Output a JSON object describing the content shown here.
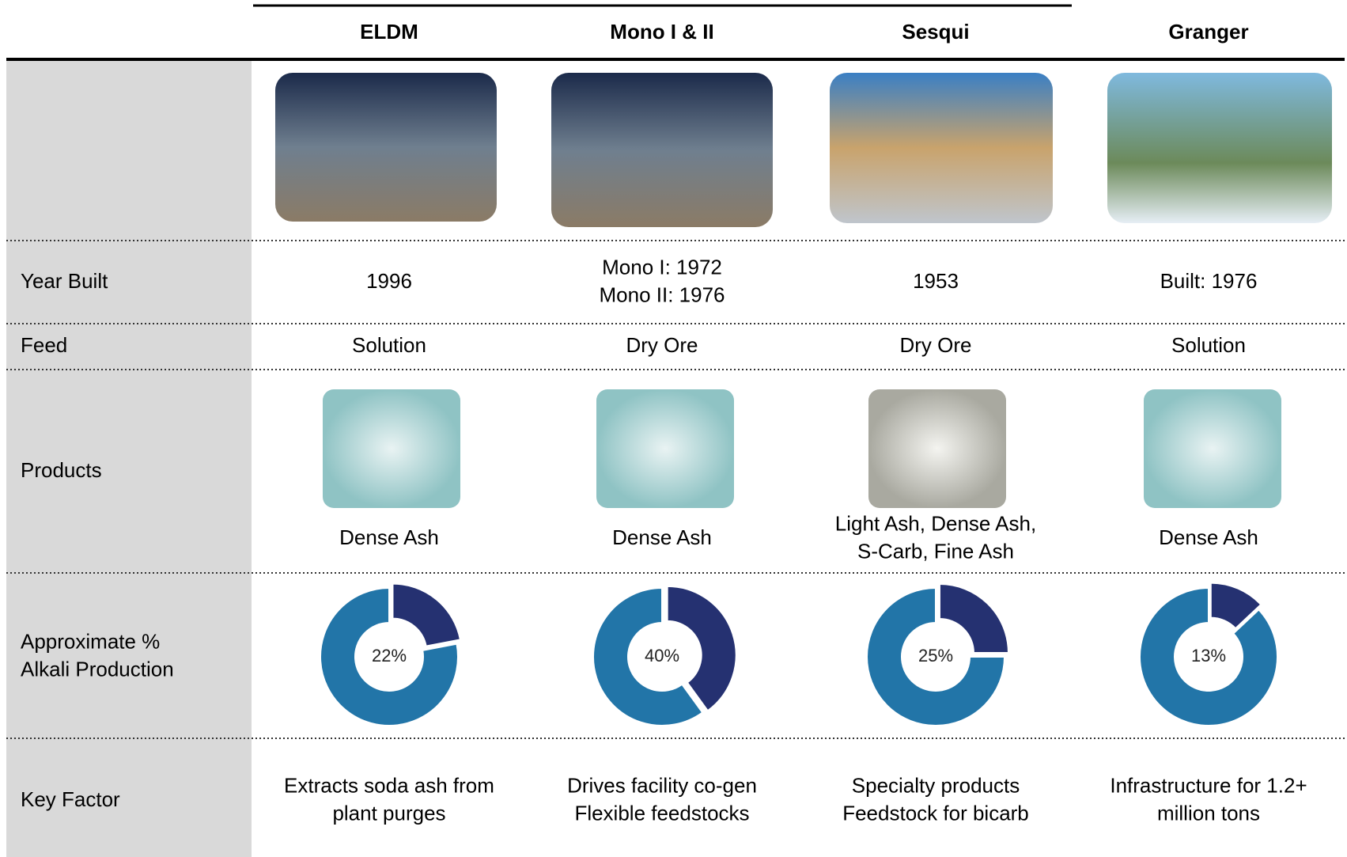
{
  "table": {
    "columns": [
      "ELDM",
      "Mono I & II",
      "Sesqui",
      "Granger"
    ],
    "row_labels": {
      "year_built": [
        "Year Built"
      ],
      "feed": [
        "Feed"
      ],
      "products": [
        "Products"
      ],
      "alkali": [
        "Approximate %",
        "Alkali Production"
      ],
      "key_factor": [
        "Key Factor"
      ]
    },
    "year_built": [
      [
        "1996"
      ],
      [
        "Mono I: 1972",
        "Mono II: 1976"
      ],
      [
        "1953"
      ],
      [
        "Built: 1976"
      ]
    ],
    "feed": [
      "Solution",
      "Dry Ore",
      "Dry Ore",
      "Solution"
    ],
    "products": [
      [
        "Dense Ash"
      ],
      [
        "Dense Ash"
      ],
      [
        "Light Ash, Dense Ash,",
        "S-Carb, Fine Ash"
      ],
      [
        "Dense Ash"
      ]
    ],
    "alkali_production": {
      "values": [
        22,
        40,
        25,
        13
      ],
      "value_labels": [
        "22%",
        "40%",
        "25%",
        "13%"
      ],
      "colors": [
        "#253171",
        "#2275a8"
      ]
    },
    "key_factor": [
      [
        "Extracts soda ash from",
        "plant purges"
      ],
      [
        "Drives facility co-gen",
        "Flexible feedstocks"
      ],
      [
        "Specialty products",
        "Feedstock for bicarb"
      ],
      [
        "Infrastructure for 1.2+",
        "million tons"
      ]
    ]
  }
}
